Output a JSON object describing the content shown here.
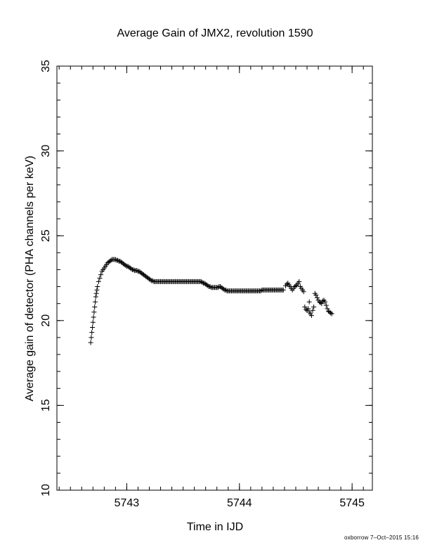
{
  "chart_data": {
    "type": "scatter",
    "marker": "plus",
    "title": "Average Gain of JMX2, revolution 1590",
    "xlabel": "Time in IJD",
    "ylabel": "Average gain of detector (PHA channels per keV)",
    "xlim": [
      5742.38,
      5745.18
    ],
    "ylim": [
      10,
      35
    ],
    "x_ticks": [
      5743,
      5744,
      5745
    ],
    "y_ticks": [
      10,
      15,
      20,
      25,
      30,
      35
    ],
    "x_minor_step": 0.1,
    "y_minor_step": 1,
    "grid": false,
    "legend": "none",
    "series": [
      {
        "points": [
          [
            5742.68,
            18.7
          ],
          [
            5742.685,
            19.0
          ],
          [
            5742.69,
            19.3
          ],
          [
            5742.695,
            19.6
          ],
          [
            5742.7,
            19.9
          ],
          [
            5742.705,
            20.2
          ],
          [
            5742.71,
            20.5
          ],
          [
            5742.715,
            20.8
          ],
          [
            5742.72,
            21.1
          ],
          [
            5742.725,
            21.4
          ],
          [
            5742.73,
            21.6
          ],
          [
            5742.735,
            21.8
          ],
          [
            5742.74,
            22.0
          ],
          [
            5742.75,
            22.3
          ],
          [
            5742.76,
            22.5
          ],
          [
            5742.77,
            22.7
          ],
          [
            5742.78,
            22.9
          ],
          [
            5742.79,
            23.0
          ],
          [
            5742.8,
            23.1
          ],
          [
            5742.81,
            23.2
          ],
          [
            5742.82,
            23.3
          ],
          [
            5742.83,
            23.4
          ],
          [
            5742.84,
            23.45
          ],
          [
            5742.85,
            23.5
          ],
          [
            5742.86,
            23.55
          ],
          [
            5742.87,
            23.6
          ],
          [
            5742.88,
            23.6
          ],
          [
            5742.89,
            23.6
          ],
          [
            5742.9,
            23.6
          ],
          [
            5742.91,
            23.55
          ],
          [
            5742.92,
            23.55
          ],
          [
            5742.93,
            23.5
          ],
          [
            5742.94,
            23.5
          ],
          [
            5742.95,
            23.45
          ],
          [
            5742.96,
            23.4
          ],
          [
            5742.97,
            23.35
          ],
          [
            5742.98,
            23.3
          ],
          [
            5742.99,
            23.25
          ],
          [
            5743.0,
            23.2
          ],
          [
            5743.01,
            23.2
          ],
          [
            5743.02,
            23.15
          ],
          [
            5743.03,
            23.1
          ],
          [
            5743.04,
            23.05
          ],
          [
            5743.05,
            23.0
          ],
          [
            5743.06,
            23.0
          ],
          [
            5743.07,
            22.95
          ],
          [
            5743.08,
            22.95
          ],
          [
            5743.09,
            22.95
          ],
          [
            5743.1,
            22.9
          ],
          [
            5743.11,
            22.9
          ],
          [
            5743.12,
            22.85
          ],
          [
            5743.13,
            22.8
          ],
          [
            5743.14,
            22.75
          ],
          [
            5743.15,
            22.7
          ],
          [
            5743.16,
            22.65
          ],
          [
            5743.17,
            22.6
          ],
          [
            5743.18,
            22.55
          ],
          [
            5743.19,
            22.5
          ],
          [
            5743.2,
            22.45
          ],
          [
            5743.21,
            22.4
          ],
          [
            5743.22,
            22.35
          ],
          [
            5743.23,
            22.35
          ],
          [
            5743.24,
            22.3
          ],
          [
            5743.25,
            22.3
          ],
          [
            5743.26,
            22.3
          ],
          [
            5743.27,
            22.3
          ],
          [
            5743.28,
            22.3
          ],
          [
            5743.29,
            22.3
          ],
          [
            5743.3,
            22.3
          ],
          [
            5743.31,
            22.3
          ],
          [
            5743.32,
            22.3
          ],
          [
            5743.33,
            22.3
          ],
          [
            5743.34,
            22.3
          ],
          [
            5743.35,
            22.3
          ],
          [
            5743.36,
            22.3
          ],
          [
            5743.37,
            22.3
          ],
          [
            5743.38,
            22.3
          ],
          [
            5743.39,
            22.3
          ],
          [
            5743.4,
            22.3
          ],
          [
            5743.41,
            22.3
          ],
          [
            5743.42,
            22.3
          ],
          [
            5743.43,
            22.3
          ],
          [
            5743.44,
            22.3
          ],
          [
            5743.45,
            22.3
          ],
          [
            5743.46,
            22.3
          ],
          [
            5743.47,
            22.3
          ],
          [
            5743.48,
            22.3
          ],
          [
            5743.49,
            22.3
          ],
          [
            5743.5,
            22.3
          ],
          [
            5743.51,
            22.3
          ],
          [
            5743.52,
            22.3
          ],
          [
            5743.53,
            22.3
          ],
          [
            5743.54,
            22.3
          ],
          [
            5743.55,
            22.3
          ],
          [
            5743.56,
            22.3
          ],
          [
            5743.57,
            22.3
          ],
          [
            5743.58,
            22.3
          ],
          [
            5743.59,
            22.3
          ],
          [
            5743.6,
            22.3
          ],
          [
            5743.61,
            22.3
          ],
          [
            5743.62,
            22.3
          ],
          [
            5743.63,
            22.3
          ],
          [
            5743.64,
            22.3
          ],
          [
            5743.65,
            22.3
          ],
          [
            5743.66,
            22.3
          ],
          [
            5743.67,
            22.25
          ],
          [
            5743.68,
            22.2
          ],
          [
            5743.69,
            22.2
          ],
          [
            5743.7,
            22.15
          ],
          [
            5743.71,
            22.1
          ],
          [
            5743.72,
            22.05
          ],
          [
            5743.73,
            22.0
          ],
          [
            5743.74,
            22.0
          ],
          [
            5743.75,
            21.95
          ],
          [
            5743.76,
            21.95
          ],
          [
            5743.77,
            21.95
          ],
          [
            5743.78,
            21.95
          ],
          [
            5743.79,
            21.95
          ],
          [
            5743.8,
            21.95
          ],
          [
            5743.81,
            21.95
          ],
          [
            5743.82,
            22.0
          ],
          [
            5743.83,
            22.0
          ],
          [
            5743.84,
            21.95
          ],
          [
            5743.85,
            21.9
          ],
          [
            5743.86,
            21.85
          ],
          [
            5743.87,
            21.8
          ],
          [
            5743.88,
            21.8
          ],
          [
            5743.89,
            21.75
          ],
          [
            5743.9,
            21.75
          ],
          [
            5743.91,
            21.75
          ],
          [
            5743.92,
            21.75
          ],
          [
            5743.93,
            21.75
          ],
          [
            5743.94,
            21.75
          ],
          [
            5743.95,
            21.75
          ],
          [
            5743.96,
            21.75
          ],
          [
            5743.97,
            21.75
          ],
          [
            5743.98,
            21.75
          ],
          [
            5743.99,
            21.75
          ],
          [
            5744.0,
            21.75
          ],
          [
            5744.01,
            21.75
          ],
          [
            5744.02,
            21.75
          ],
          [
            5744.03,
            21.75
          ],
          [
            5744.04,
            21.75
          ],
          [
            5744.05,
            21.75
          ],
          [
            5744.06,
            21.75
          ],
          [
            5744.07,
            21.75
          ],
          [
            5744.08,
            21.75
          ],
          [
            5744.09,
            21.75
          ],
          [
            5744.1,
            21.75
          ],
          [
            5744.11,
            21.75
          ],
          [
            5744.12,
            21.75
          ],
          [
            5744.13,
            21.75
          ],
          [
            5744.14,
            21.75
          ],
          [
            5744.15,
            21.75
          ],
          [
            5744.16,
            21.75
          ],
          [
            5744.17,
            21.75
          ],
          [
            5744.18,
            21.75
          ],
          [
            5744.19,
            21.75
          ],
          [
            5744.2,
            21.8
          ],
          [
            5744.21,
            21.8
          ],
          [
            5744.22,
            21.8
          ],
          [
            5744.23,
            21.8
          ],
          [
            5744.24,
            21.8
          ],
          [
            5744.25,
            21.8
          ],
          [
            5744.26,
            21.8
          ],
          [
            5744.27,
            21.8
          ],
          [
            5744.28,
            21.8
          ],
          [
            5744.29,
            21.8
          ],
          [
            5744.3,
            21.8
          ],
          [
            5744.31,
            21.8
          ],
          [
            5744.32,
            21.8
          ],
          [
            5744.33,
            21.8
          ],
          [
            5744.34,
            21.8
          ],
          [
            5744.35,
            21.8
          ],
          [
            5744.36,
            21.8
          ],
          [
            5744.37,
            21.8
          ],
          [
            5744.38,
            21.8
          ],
          [
            5744.39,
            21.8
          ],
          [
            5744.41,
            22.05
          ],
          [
            5744.42,
            22.15
          ],
          [
            5744.43,
            22.2
          ],
          [
            5744.44,
            22.1
          ],
          [
            5744.45,
            22.0
          ],
          [
            5744.46,
            21.9
          ],
          [
            5744.47,
            21.8
          ],
          [
            5744.48,
            21.9
          ],
          [
            5744.49,
            22.0
          ],
          [
            5744.5,
            22.05
          ],
          [
            5744.51,
            22.1
          ],
          [
            5744.52,
            22.2
          ],
          [
            5744.53,
            22.3
          ],
          [
            5744.54,
            22.0
          ],
          [
            5744.55,
            21.9
          ],
          [
            5744.56,
            21.8
          ],
          [
            5744.57,
            21.7
          ],
          [
            5744.58,
            20.8
          ],
          [
            5744.59,
            20.65
          ],
          [
            5744.6,
            20.6
          ],
          [
            5744.61,
            20.7
          ],
          [
            5744.62,
            21.1
          ],
          [
            5744.62,
            20.5
          ],
          [
            5744.63,
            20.4
          ],
          [
            5744.64,
            20.3
          ],
          [
            5744.65,
            20.6
          ],
          [
            5744.66,
            20.8
          ],
          [
            5744.67,
            21.6
          ],
          [
            5744.68,
            21.5
          ],
          [
            5744.69,
            21.35
          ],
          [
            5744.7,
            21.2
          ],
          [
            5744.71,
            21.1
          ],
          [
            5744.72,
            21.05
          ],
          [
            5744.73,
            21.0
          ],
          [
            5744.74,
            21.15
          ],
          [
            5744.75,
            21.2
          ],
          [
            5744.76,
            21.1
          ],
          [
            5744.77,
            20.9
          ],
          [
            5744.78,
            20.7
          ],
          [
            5744.79,
            20.55
          ],
          [
            5744.8,
            20.5
          ],
          [
            5744.81,
            20.45
          ],
          [
            5744.82,
            20.4
          ]
        ]
      }
    ]
  },
  "footer": {
    "credit": "oxborrow  7–Oct–2015 15:16"
  }
}
